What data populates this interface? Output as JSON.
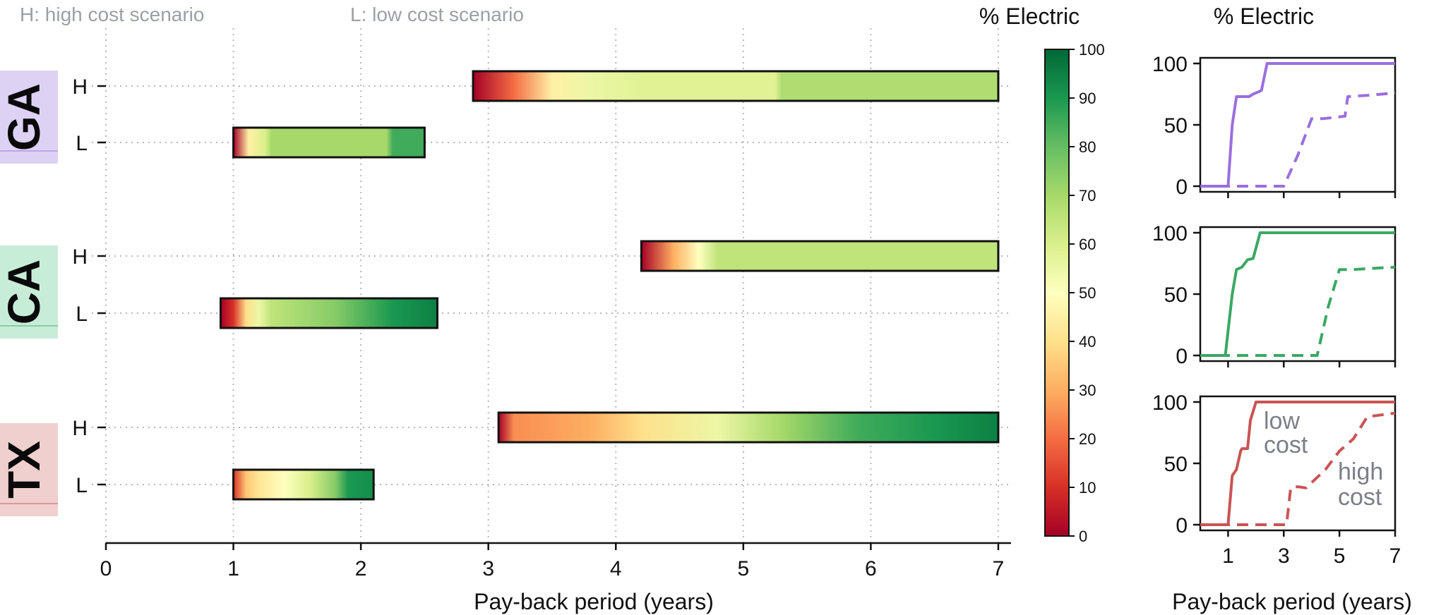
{
  "notes": {
    "high": "H: high cost scenario",
    "low": "L: low cost scenario"
  },
  "colorbar": {
    "title": "% Electric",
    "ticks": [
      "0",
      "10",
      "20",
      "30",
      "40",
      "50",
      "60",
      "70",
      "80",
      "90",
      "100"
    ],
    "range": [
      0,
      100
    ],
    "colormap": "RdYlGn"
  },
  "colors": {
    "GA": "#9b6fde",
    "CA": "#3aa864",
    "TX": "#c95454",
    "GA_band": "#ddd2f4",
    "CA_band": "#c7ecd8",
    "TX_band": "#f0cfcf"
  },
  "chart_data": [
    {
      "type": "heatmap",
      "title": "",
      "xlabel": "Pay-back period (years)",
      "ylabel": "",
      "xlim": [
        0,
        7.1
      ],
      "xticks": [
        0,
        1,
        2,
        3,
        4,
        5,
        6,
        7
      ],
      "grid": true,
      "states": [
        {
          "name": "GA",
          "rows": [
            {
              "label": "H",
              "start": 2.88,
              "end": 7.0,
              "electric_x": [
                2.88,
                3.2,
                3.5,
                3.8,
                4.2,
                5.25,
                5.3,
                7.0
              ],
              "electric_pct": [
                0,
                20,
                45,
                55,
                58,
                58,
                68,
                68
              ]
            },
            {
              "label": "L",
              "start": 1.0,
              "end": 2.5,
              "electric_x": [
                1.0,
                1.12,
                1.25,
                1.3,
                2.2,
                2.25,
                2.5
              ],
              "electric_pct": [
                0,
                45,
                60,
                70,
                70,
                85,
                85
              ]
            }
          ]
        },
        {
          "name": "CA",
          "rows": [
            {
              "label": "H",
              "start": 4.2,
              "end": 7.0,
              "electric_x": [
                4.2,
                4.45,
                4.65,
                4.8,
                7.0
              ],
              "electric_pct": [
                0,
                30,
                50,
                65,
                65
              ]
            },
            {
              "label": "L",
              "start": 0.9,
              "end": 2.6,
              "electric_x": [
                0.9,
                1.0,
                1.1,
                1.2,
                1.3,
                1.8,
                2.25,
                2.6
              ],
              "electric_pct": [
                0,
                10,
                40,
                55,
                65,
                75,
                90,
                95
              ]
            }
          ]
        },
        {
          "name": "TX",
          "rows": [
            {
              "label": "H",
              "start": 3.08,
              "end": 7.0,
              "electric_x": [
                3.08,
                3.2,
                3.8,
                4.2,
                4.8,
                5.3,
                5.9,
                6.5,
                7.0
              ],
              "electric_pct": [
                0,
                25,
                30,
                40,
                55,
                70,
                85,
                90,
                95
              ],
              "note": ""
            },
            {
              "label": "L",
              "start": 1.0,
              "end": 2.1,
              "electric_x": [
                1.0,
                1.1,
                1.2,
                1.4,
                1.6,
                1.8,
                1.9,
                2.1
              ],
              "electric_pct": [
                10,
                35,
                42,
                50,
                60,
                75,
                90,
                92
              ]
            }
          ]
        }
      ]
    },
    {
      "type": "line",
      "title": "% Electric",
      "xlabel": "Pay-back period (years)",
      "ylabel": "",
      "xlim": [
        0,
        7
      ],
      "ylim": [
        0,
        100
      ],
      "xticks": [
        1,
        3,
        5,
        7
      ],
      "yticks": [
        0,
        50,
        100
      ],
      "panels": [
        {
          "state": "GA",
          "series": [
            {
              "name": "low cost",
              "style": "solid",
              "x": [
                0,
                1.0,
                1.15,
                1.3,
                1.75,
                1.9,
                2.2,
                2.4,
                7
              ],
              "y": [
                0,
                0,
                50,
                73,
                73,
                75,
                78,
                100,
                100
              ]
            },
            {
              "name": "high cost",
              "style": "dashed",
              "x": [
                0,
                3.0,
                3.5,
                4.0,
                4.4,
                5.2,
                5.3,
                6.0,
                7
              ],
              "y": [
                0,
                0,
                25,
                55,
                55,
                57,
                73,
                74,
                76
              ]
            }
          ]
        },
        {
          "state": "CA",
          "series": [
            {
              "name": "low cost",
              "style": "solid",
              "x": [
                0,
                0.9,
                1.15,
                1.3,
                1.5,
                1.7,
                1.9,
                2.15,
                7
              ],
              "y": [
                0,
                0,
                50,
                70,
                72,
                78,
                79,
                100,
                100
              ]
            },
            {
              "name": "high cost",
              "style": "dashed",
              "x": [
                0,
                4.2,
                4.6,
                5.0,
                5.5,
                6.2,
                7
              ],
              "y": [
                0,
                0,
                40,
                70,
                70,
                71,
                72
              ]
            }
          ]
        },
        {
          "state": "TX",
          "series": [
            {
              "name": "low cost",
              "style": "solid",
              "x": [
                0,
                1.0,
                1.15,
                1.3,
                1.45,
                1.5,
                1.7,
                1.8,
                2.0,
                7
              ],
              "y": [
                0,
                0,
                40,
                45,
                60,
                62,
                62,
                85,
                100,
                100
              ]
            },
            {
              "name": "high cost",
              "style": "dashed",
              "x": [
                0,
                3.1,
                3.25,
                3.5,
                3.8,
                4.5,
                5.0,
                5.5,
                6.0,
                7
              ],
              "y": [
                0,
                0,
                30,
                31,
                30,
                45,
                60,
                70,
                88,
                91
              ]
            }
          ],
          "annotations": [
            "low",
            "cost",
            "high",
            "cost"
          ]
        }
      ]
    }
  ]
}
